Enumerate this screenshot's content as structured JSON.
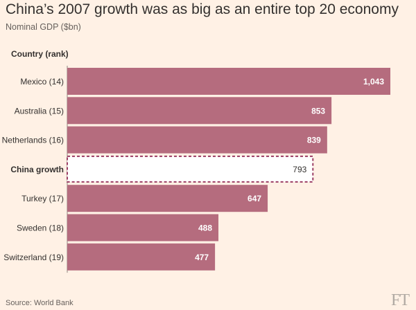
{
  "title": "China’s 2007 growth was as big as an entire top 20 economy",
  "subtitle": "Nominal GDP ($bn)",
  "column_header": "Country (rank)",
  "source": "Source: World Bank",
  "logo": "FT",
  "colors": {
    "bar": "#b56c7e",
    "highlight_border": "#9b3d64",
    "highlight_fill": "#ffffff",
    "background": "#fff1e5"
  },
  "chart_data": {
    "type": "bar",
    "orientation": "horizontal",
    "categories": [
      "Mexico (14)",
      "Australia (15)",
      "Netherlands (16)",
      "China growth",
      "Turkey (17)",
      "Sweden (18)",
      "Switzerland (19)"
    ],
    "values": [
      1043,
      853,
      839,
      793,
      647,
      488,
      477
    ],
    "value_labels": [
      "1,043",
      "853",
      "839",
      "793",
      "647",
      "488",
      "477"
    ],
    "highlighted": "China growth",
    "ylabel": "Country (rank)",
    "xlim": [
      0,
      1080
    ],
    "grid": false,
    "legend": "none"
  }
}
